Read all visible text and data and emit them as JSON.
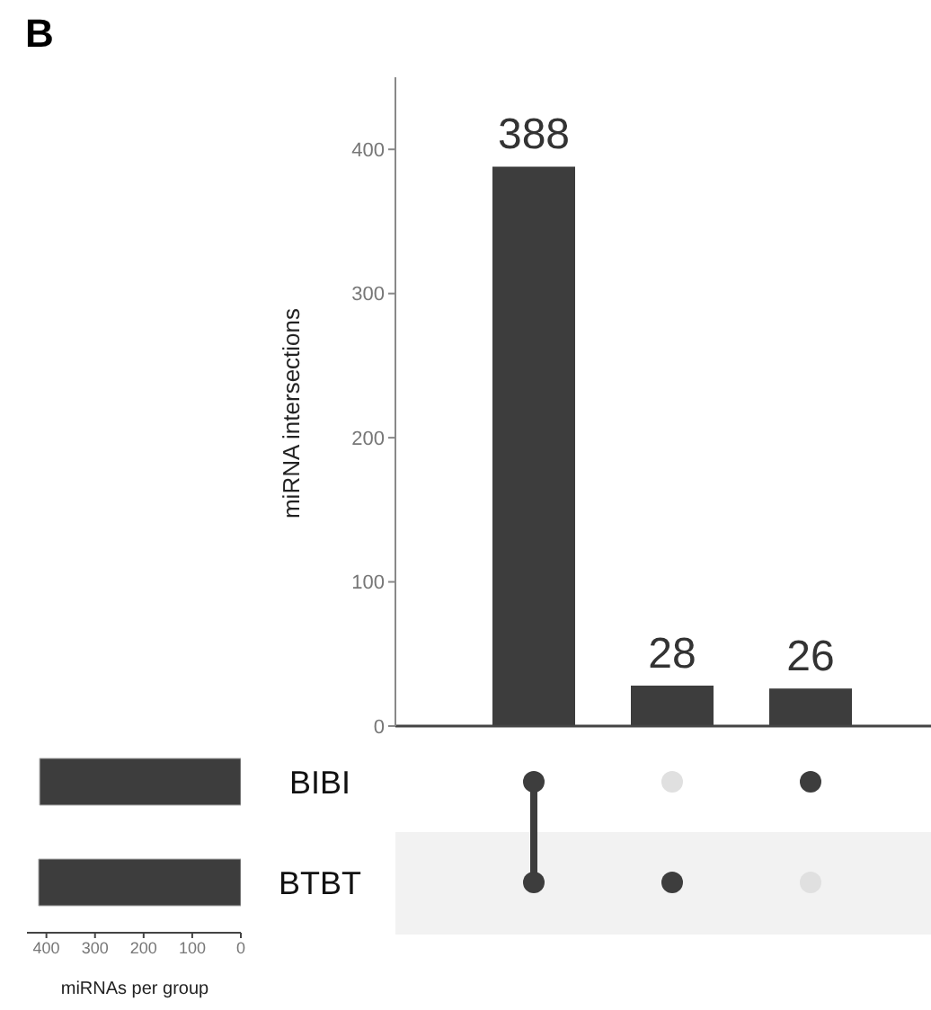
{
  "chart_data": [
    {
      "type": "bar",
      "annotations": [
        "B"
      ],
      "ylabel": "miRNA intersections",
      "categories": [
        null,
        null,
        null
      ],
      "values": [
        388,
        28,
        26
      ],
      "color": "#3d3d3d",
      "ylim": [
        0,
        450
      ],
      "yticks": [
        0,
        100,
        200,
        300,
        400
      ],
      "data_labels": true
    },
    {
      "type": "bar",
      "orientation": "horizontal",
      "xlabel": "miRNAs per group",
      "categories": [
        "BIBI",
        "BTBT"
      ],
      "values": [
        414,
        416
      ],
      "color": "#3d3d3d",
      "xlim": [
        440,
        0
      ],
      "xticks": [
        400,
        300,
        200,
        100,
        0
      ]
    }
  ]
}
